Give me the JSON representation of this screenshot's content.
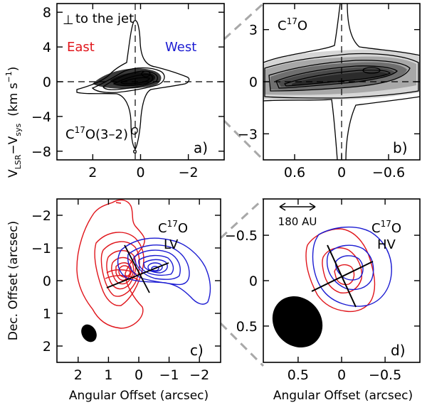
{
  "chart_data": [
    {
      "panel": "a)",
      "type": "contour",
      "annotations": {
        "jet_symbol": "⊥",
        "jet_note": "to the jet",
        "east": "East",
        "west": "West",
        "molecule_base": "C",
        "molecule_sup": "17",
        "molecule_tail": "O(3–2)"
      },
      "ylabel_base": "V",
      "ylabel_sub1": "LSR",
      "ylabel_mid": "−V",
      "ylabel_sub2": "sys",
      "ylabel_units": "(km s",
      "ylabel_units_sup": "−1",
      "ylabel_close": ")",
      "xticks": [
        {
          "value": 2,
          "label": "2"
        },
        {
          "value": 0,
          "label": "0"
        },
        {
          "value": -2,
          "label": "−2"
        }
      ],
      "yticks": [
        {
          "value": -8,
          "label": "−8"
        },
        {
          "value": -4,
          "label": "−4"
        },
        {
          "value": 0,
          "label": "0"
        },
        {
          "value": 4,
          "label": "4"
        },
        {
          "value": 8,
          "label": "8"
        }
      ],
      "xlim": [
        3.5,
        -3.5
      ],
      "ylim": [
        9,
        -9
      ],
      "colors": {
        "east": "#e0151b",
        "west": "#1c1cd2"
      }
    },
    {
      "panel": "b)",
      "type": "contour",
      "annotations": {
        "molecule_base": "C",
        "molecule_sup": "17",
        "molecule_tail": "O"
      },
      "xticks": [
        {
          "value": 0.6,
          "label": "0.6"
        },
        {
          "value": 0,
          "label": "0"
        },
        {
          "value": -0.6,
          "label": "−0.6"
        }
      ],
      "yticks": [
        {
          "value": -3,
          "label": "−3"
        },
        {
          "value": 0,
          "label": "0"
        },
        {
          "value": 3,
          "label": "3"
        }
      ],
      "xlim": [
        1.0,
        -1.0
      ],
      "ylim": [
        4.5,
        -4.5
      ]
    },
    {
      "panel": "c)",
      "type": "contour",
      "annotations": {
        "molecule_base": "C",
        "molecule_sup": "17",
        "molecule_tail": "O",
        "range": "LV"
      },
      "xlabel": "Angular Offset (arcsec)",
      "ylabel": "Dec. Offset (arcsec)",
      "xticks": [
        {
          "value": 2,
          "label": "2"
        },
        {
          "value": 1,
          "label": "1"
        },
        {
          "value": 0,
          "label": "0"
        },
        {
          "value": -1,
          "label": "−1"
        },
        {
          "value": -2,
          "label": "−2"
        }
      ],
      "yticks": [
        {
          "value": 2,
          "label": "2"
        },
        {
          "value": 1,
          "label": "1"
        },
        {
          "value": 0,
          "label": "0"
        },
        {
          "value": -1,
          "label": "−1"
        },
        {
          "value": -2,
          "label": "−2"
        }
      ],
      "xlim": [
        2.7,
        -2.7
      ],
      "ylim": [
        -2.5,
        2.5
      ],
      "series": [
        {
          "name": "East",
          "color": "#e0151b"
        },
        {
          "name": "West",
          "color": "#1c1cd2"
        }
      ]
    },
    {
      "panel": "d)",
      "type": "contour",
      "annotations": {
        "molecule_base": "C",
        "molecule_sup": "17",
        "molecule_tail": "O",
        "range": "HV",
        "scalebar": "180 AU"
      },
      "xlabel": "Angular Offset (arcsec)",
      "xticks": [
        {
          "value": 0.5,
          "label": "0.5"
        },
        {
          "value": 0,
          "label": "0"
        },
        {
          "value": -0.5,
          "label": "−0.5"
        }
      ],
      "yticks": [
        {
          "value": 0.5,
          "label": "0.5"
        },
        {
          "value": 0,
          "label": "0"
        },
        {
          "value": -0.5,
          "label": "−0.5"
        }
      ],
      "xlim": [
        0.9,
        -0.9
      ],
      "ylim": [
        -0.9,
        0.9
      ],
      "series": [
        {
          "name": "East",
          "color": "#e0151b"
        },
        {
          "name": "West",
          "color": "#1c1cd2"
        }
      ]
    }
  ]
}
